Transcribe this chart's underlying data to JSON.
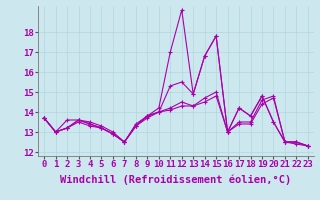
{
  "background_color": "#cce8ee",
  "line_color": "#aa00aa",
  "xlim": [
    -0.5,
    23.5
  ],
  "ylim": [
    11.8,
    19.3
  ],
  "yticks": [
    12,
    13,
    14,
    15,
    16,
    17,
    18
  ],
  "xticks": [
    0,
    1,
    2,
    3,
    4,
    5,
    6,
    7,
    8,
    9,
    10,
    11,
    12,
    13,
    14,
    15,
    16,
    17,
    18,
    19,
    20,
    21,
    22,
    23
  ],
  "xlabel": "Windchill (Refroidissement éolien,°C)",
  "series": [
    [
      13.7,
      13.0,
      13.6,
      13.6,
      13.5,
      13.3,
      13.0,
      12.5,
      13.4,
      13.8,
      14.2,
      17.0,
      19.1,
      14.9,
      16.8,
      17.8,
      13.0,
      14.2,
      13.8,
      14.8,
      13.5,
      12.5,
      12.5,
      12.3
    ],
    [
      13.7,
      13.0,
      13.2,
      13.6,
      13.4,
      13.2,
      12.9,
      12.5,
      13.3,
      13.8,
      14.0,
      15.3,
      15.5,
      14.9,
      16.8,
      17.8,
      13.0,
      14.2,
      13.8,
      14.8,
      13.5,
      12.5,
      12.5,
      12.3
    ],
    [
      13.7,
      13.0,
      13.2,
      13.6,
      13.4,
      13.2,
      12.9,
      12.5,
      13.3,
      13.8,
      14.0,
      14.2,
      14.5,
      14.3,
      14.7,
      15.0,
      13.0,
      13.5,
      13.5,
      14.6,
      14.8,
      12.5,
      12.5,
      12.3
    ],
    [
      13.7,
      13.0,
      13.2,
      13.5,
      13.3,
      13.2,
      12.9,
      12.5,
      13.3,
      13.7,
      14.0,
      14.1,
      14.3,
      14.3,
      14.5,
      14.8,
      13.0,
      13.4,
      13.4,
      14.4,
      14.7,
      12.5,
      12.4,
      12.3
    ]
  ],
  "tick_fontsize": 6.5,
  "xlabel_fontsize": 7.5,
  "grid_color": "#b0d8de"
}
